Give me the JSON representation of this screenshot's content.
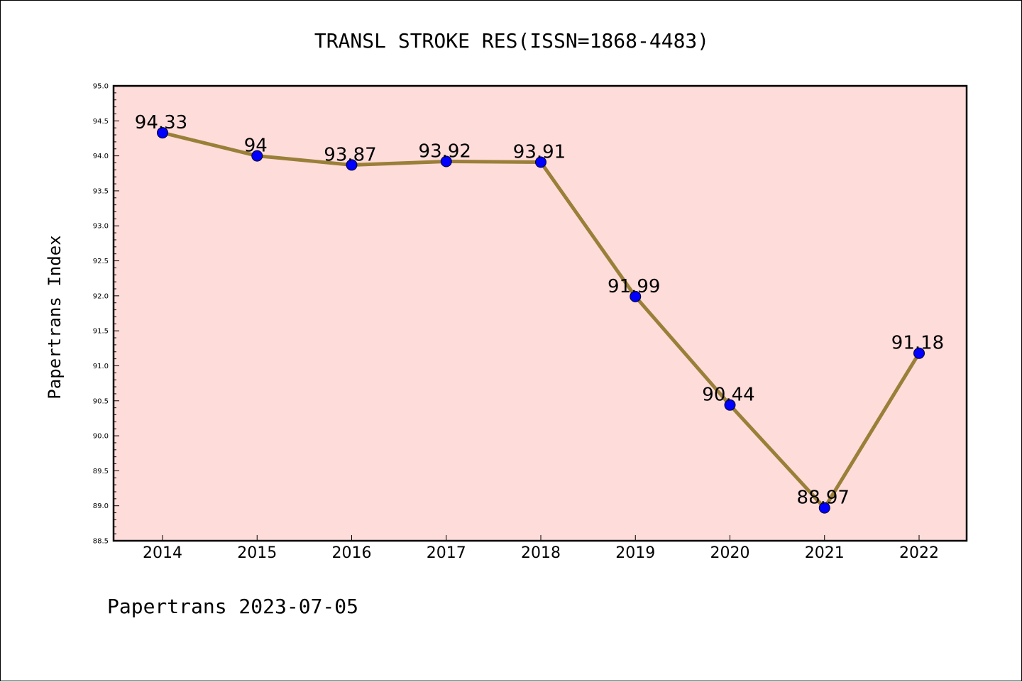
{
  "chart_data": {
    "type": "line",
    "title": "TRANSL STROKE RES(ISSN=1868-4483)",
    "xlabel": "",
    "ylabel": "Papertrans Index",
    "categories": [
      "2014",
      "2015",
      "2016",
      "2017",
      "2018",
      "2019",
      "2020",
      "2021",
      "2022"
    ],
    "values": [
      94.33,
      94,
      93.87,
      93.92,
      93.91,
      91.99,
      90.44,
      88.97,
      91.18
    ],
    "data_labels": [
      "94.33",
      "94",
      "93.87",
      "93.92",
      "93.91",
      "91.99",
      "90.44",
      "88.97",
      "91.18"
    ],
    "ylim": [
      88.5,
      95.0
    ],
    "yticks": [
      "88.5",
      "89.0",
      "89.5",
      "90.0",
      "90.5",
      "91.0",
      "91.5",
      "92.0",
      "92.5",
      "93.0",
      "93.5",
      "94.0",
      "94.5",
      "95.0"
    ],
    "grid": false,
    "legend": "none",
    "colors": {
      "plot_background": "#fddcda",
      "line": "#9a7f38",
      "marker": "#0000ff"
    }
  },
  "footer": "Papertrans 2023-07-05"
}
